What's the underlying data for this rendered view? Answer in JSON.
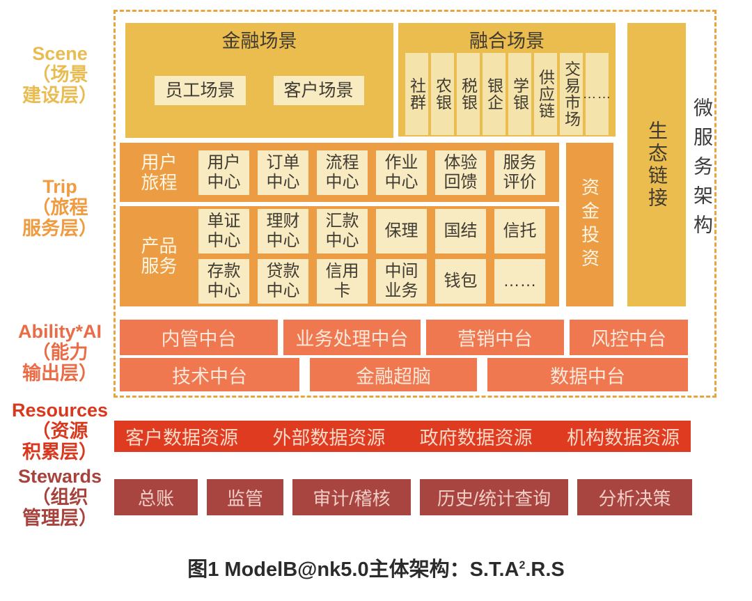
{
  "labels": {
    "scene": "Scene\n（场景\n建设层）",
    "trip": "Trip\n（旅程\n服务层）",
    "ability": "Ability*AI\n（能力\n输出层）",
    "resources": "Resources\n（资源\n积累层）",
    "stewards": "Stewards\n（组织\n管理层）"
  },
  "scene": {
    "finance": {
      "title": "金融场景",
      "items": [
        "员工场景",
        "客户场景"
      ]
    },
    "fusion": {
      "title": "融合场景",
      "items": [
        "社群",
        "农银",
        "税银",
        "银企",
        "学银",
        "供应链",
        "交易市场",
        "……"
      ]
    },
    "eco_link": "生态链接",
    "microservice": "微服务架构"
  },
  "trip": {
    "journey": {
      "label": "用户\n旅程",
      "items": [
        "用户\n中心",
        "订单\n中心",
        "流程\n中心",
        "作业\n中心",
        "体验\n回馈",
        "服务\n评价"
      ]
    },
    "product": {
      "label": "产品\n服务",
      "row1": [
        "单证\n中心",
        "理财\n中心",
        "汇款\n中心",
        "保理",
        "国结",
        "信托"
      ],
      "row2": [
        "存款\n中心",
        "贷款\n中心",
        "信用\n卡",
        "中间\n业务",
        "钱包",
        "……"
      ]
    },
    "fund": "资金投资"
  },
  "ability": {
    "row1": [
      "内管中台",
      "业务处理中台",
      "营销中台",
      "风控中台"
    ],
    "row2": [
      "技术中台",
      "金融超脑",
      "数据中台"
    ]
  },
  "resources": {
    "items": [
      "客户数据资源",
      "外部数据资源",
      "政府数据资源",
      "机构数据资源"
    ]
  },
  "stewards": {
    "items": [
      "总账",
      "监管",
      "审计/稽核",
      "历史/统计查询",
      "分析决策"
    ]
  },
  "caption": {
    "prefix": "图1 ModelB@nk5.0主体架构：S.T.A",
    "sup": "2",
    "suffix": ".R.S"
  },
  "colors": {
    "gold": "#EBBC4E",
    "cream": "#F8EBC2",
    "orange": "#EC9C43",
    "coral": "#EF7850",
    "red": "#DF3B20",
    "brick": "#A94541",
    "dashed_border": "#E9A53D"
  }
}
